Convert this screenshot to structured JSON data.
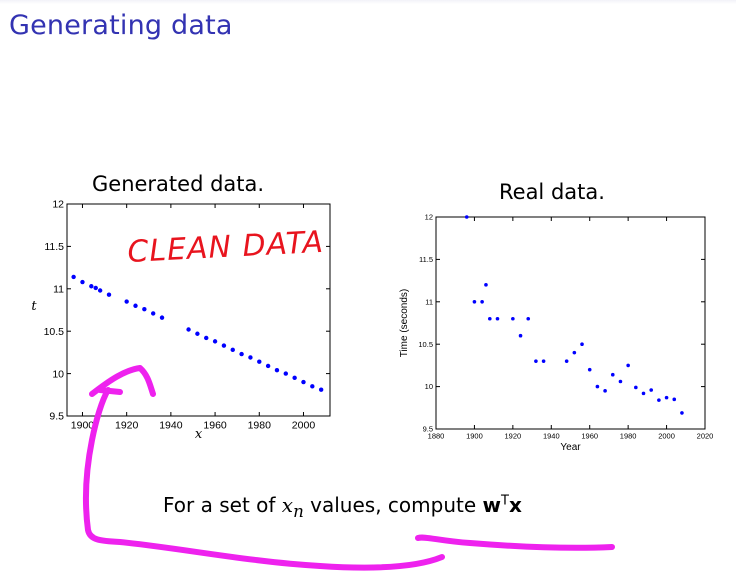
{
  "slide": {
    "title": "Generating data",
    "caption_prefix": "For a set of ",
    "caption_var": "x",
    "caption_sub": "n",
    "caption_mid": " values, compute ",
    "caption_w": "w",
    "caption_T": "T",
    "caption_x": "x"
  },
  "annotation": {
    "text": "CLEAN DATA",
    "ink_color": "#e8141e",
    "arrow_color": "#ee22ee"
  },
  "chart_data": [
    {
      "type": "scatter",
      "title": "Generated data.",
      "xlabel": "x",
      "ylabel": "t",
      "xlim": [
        1893,
        2012
      ],
      "ylim": [
        9.5,
        12
      ],
      "xticks": [
        1900,
        1920,
        1940,
        1960,
        1980,
        2000
      ],
      "yticks": [
        9.5,
        10,
        10.5,
        11,
        11.5,
        12
      ],
      "ytick_labels": [
        "9.5",
        "10",
        "10.5",
        "11",
        "11.5",
        "12"
      ],
      "color": "#0000ff",
      "x": [
        1896,
        1900,
        1904,
        1906,
        1908,
        1912,
        1920,
        1924,
        1928,
        1932,
        1936,
        1948,
        1952,
        1956,
        1960,
        1964,
        1968,
        1972,
        1976,
        1980,
        1984,
        1988,
        1992,
        1996,
        2000,
        2004,
        2008
      ],
      "y": [
        11.14,
        11.08,
        11.03,
        11.01,
        10.98,
        10.93,
        10.85,
        10.8,
        10.76,
        10.71,
        10.66,
        10.52,
        10.47,
        10.42,
        10.38,
        10.33,
        10.28,
        10.23,
        10.19,
        10.14,
        10.09,
        10.04,
        10.0,
        9.95,
        9.9,
        9.85,
        9.81
      ]
    },
    {
      "type": "scatter",
      "title": "Real data.",
      "xlabel": "Year",
      "ylabel": "Time (seconds)",
      "xlim": [
        1880,
        2020
      ],
      "ylim": [
        9.5,
        12
      ],
      "xticks": [
        1880,
        1900,
        1920,
        1940,
        1960,
        1980,
        2000,
        2020
      ],
      "yticks": [
        9.5,
        10,
        10.5,
        11,
        11.5,
        12
      ],
      "ytick_labels": [
        "9.5",
        "10",
        "10.5",
        "11",
        "11.5",
        "12"
      ],
      "color": "#0000ff",
      "x": [
        1896,
        1900,
        1904,
        1906,
        1908,
        1912,
        1920,
        1924,
        1928,
        1932,
        1936,
        1948,
        1952,
        1956,
        1960,
        1964,
        1968,
        1972,
        1976,
        1980,
        1984,
        1988,
        1992,
        1996,
        2000,
        2004,
        2008
      ],
      "y": [
        12.0,
        11.0,
        11.0,
        11.2,
        10.8,
        10.8,
        10.8,
        10.6,
        10.8,
        10.3,
        10.3,
        10.3,
        10.4,
        10.5,
        10.2,
        10.0,
        9.95,
        10.14,
        10.06,
        10.25,
        9.99,
        9.92,
        9.96,
        9.84,
        9.87,
        9.85,
        9.69
      ]
    }
  ]
}
